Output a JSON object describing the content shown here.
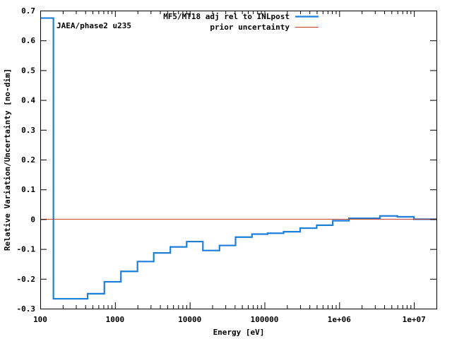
{
  "chart_data": {
    "type": "line",
    "step": true,
    "xscale": "log",
    "xlabel": "Energy [eV]",
    "ylabel": "Relative Variation/Uncertainty [no-dim]",
    "annotation": "JAEA/phase2 u235",
    "xlim": [
      100,
      20000000
    ],
    "ylim": [
      -0.3,
      0.7
    ],
    "grid": false,
    "legend_position": "top-right",
    "x_ticks": [
      {
        "value": 100,
        "label": "100"
      },
      {
        "value": 1000,
        "label": "1000"
      },
      {
        "value": 10000,
        "label": "10000"
      },
      {
        "value": 100000,
        "label": "100000"
      },
      {
        "value": 1000000,
        "label": "1e+06"
      },
      {
        "value": 10000000,
        "label": "1e+07"
      }
    ],
    "y_ticks": [
      {
        "value": -0.3,
        "label": "-0.3"
      },
      {
        "value": -0.2,
        "label": "-0.2"
      },
      {
        "value": -0.1,
        "label": "-0.1"
      },
      {
        "value": 0,
        "label": "0"
      },
      {
        "value": 0.1,
        "label": "0.1"
      },
      {
        "value": 0.2,
        "label": "0.2"
      },
      {
        "value": 0.3,
        "label": "0.3"
      },
      {
        "value": 0.4,
        "label": "0.4"
      },
      {
        "value": 0.5,
        "label": "0.5"
      },
      {
        "value": 0.6,
        "label": "0.6"
      },
      {
        "value": 0.7,
        "label": "0.7"
      }
    ],
    "series": [
      {
        "name": "MF5/MT18 adj rel to INLpost",
        "color": "#1f7fd8",
        "x": [
          100,
          150,
          275,
          430,
          720,
          1200,
          2000,
          3300,
          5500,
          9100,
          15000,
          25000,
          41000,
          68000,
          110000,
          180000,
          300000,
          500000,
          820000,
          1350000,
          3500000,
          6000000,
          10000000,
          20000000
        ],
        "y": [
          0.675,
          -0.267,
          -0.267,
          -0.25,
          -0.21,
          -0.175,
          -0.142,
          -0.113,
          -0.093,
          -0.075,
          -0.105,
          -0.088,
          -0.06,
          -0.05,
          -0.047,
          -0.042,
          -0.03,
          -0.02,
          -0.005,
          0.003,
          0.011,
          0.008,
          0.0,
          -0.003
        ]
      },
      {
        "name": "prior uncertainty",
        "color": "#c0392b",
        "x": [
          100,
          20000000
        ],
        "y": [
          0,
          0
        ]
      }
    ]
  }
}
